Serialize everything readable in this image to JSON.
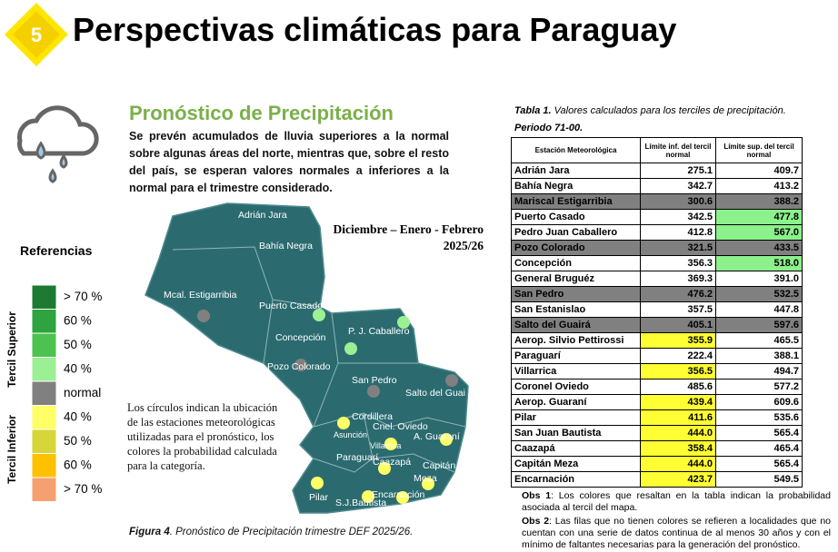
{
  "header": {
    "badge": "5",
    "title": "Perspectivas climáticas para Paraguay"
  },
  "precip": {
    "heading": "Pronóstico de Precipitación",
    "text": "Se prevén acumulados de lluvia superiores a la normal sobre algunas áreas del norte, mientras que, sobre el resto del país, se esperan valores normales a inferiores a la normal para el trimestre considerado."
  },
  "map": {
    "period_line1": "Diciembre – Enero - Febrero",
    "period_line2": "2025/26",
    "labels": [
      "Adrián Jara",
      "Bahía Negra",
      "Mcal. Estigarribia",
      "Puerto Casado",
      "P. J. Caballero",
      "Concepción",
      "Pozo Colorado",
      "San Pedro",
      "Salto del Guai",
      "Cordillera",
      "Asunción",
      "Cnel. Oviedo",
      "Villarrica",
      "A. Guaraní",
      "Paraguarí",
      "Caazapá",
      "Capitán",
      "Meza",
      "Pilar",
      "S.J.Bautista",
      "Encarnación"
    ]
  },
  "references": {
    "title": "Referencias",
    "superior": "Tercil Superior",
    "inferior": "Tercil Inferior",
    "items": [
      {
        "label": "> 70 %",
        "color": "#1e7a32"
      },
      {
        "label": "60 %",
        "color": "#2ea33f"
      },
      {
        "label": "50 %",
        "color": "#4cc24f"
      },
      {
        "label": "40 %",
        "color": "#9cf094"
      },
      {
        "label": "normal",
        "color": "#808080"
      },
      {
        "label": "40 %",
        "color": "#ffff66"
      },
      {
        "label": "50 %",
        "color": "#d6d63a"
      },
      {
        "label": "60 %",
        "color": "#ffc000"
      },
      {
        "label": "> 70 %",
        "color": "#f4a070"
      }
    ]
  },
  "note": {
    "text": "Los círculos indican la ubicación de las estaciones meteorológicas utilizadas para el pronóstico, los colores la probabilidad calculada para la categoría."
  },
  "figure_caption": {
    "label": "Figura 4",
    "text": ". Pronóstico de Precipitación trimestre DEF 2025/26."
  },
  "table": {
    "caption": {
      "label": "Tabla 1.",
      "text": " Valores calculados para los terciles de precipitación.",
      "period": "Periodo 71-00."
    },
    "header": [
      "Estación Meteorológica",
      "Límite inf. del tercil normal",
      "Límite sup. del tercil normal"
    ],
    "rows": [
      {
        "station": "Adrián Jara",
        "lower": "275.1",
        "upper": "409.7"
      },
      {
        "station": "Bahía Negra",
        "lower": "342.7",
        "upper": "413.2"
      },
      {
        "station": "Mariscal Estigarribia",
        "lower": "300.6",
        "upper": "388.2",
        "row_color": "#808080"
      },
      {
        "station": "Puerto Casado",
        "lower": "342.5",
        "upper": "477.8",
        "upper_color": "#8cf08c"
      },
      {
        "station": "Pedro Juan Caballero",
        "lower": "412.8",
        "upper": "567.0",
        "upper_color": "#8cf08c"
      },
      {
        "station": "Pozo Colorado",
        "lower": "321.5",
        "upper": "433.5",
        "row_color": "#808080"
      },
      {
        "station": "Concepción",
        "lower": "356.3",
        "upper": "518.0",
        "upper_color": "#8cf08c"
      },
      {
        "station": "General Bruguéz",
        "lower": "369.3",
        "upper": "391.0"
      },
      {
        "station": "San Pedro",
        "lower": "476.2",
        "upper": "532.5",
        "row_color": "#808080"
      },
      {
        "station": "San Estanislao",
        "lower": "357.5",
        "upper": "447.8"
      },
      {
        "station": "Salto del Guairá",
        "lower": "405.1",
        "upper": "597.6",
        "row_color": "#808080"
      },
      {
        "station": "Aerop. Silvio Pettirossi",
        "lower": "355.9",
        "upper": "465.5",
        "lower_color": "#ffff33"
      },
      {
        "station": "Paraguarí",
        "lower": "222.4",
        "upper": "388.1"
      },
      {
        "station": "Villarrica",
        "lower": "356.5",
        "upper": "494.7",
        "lower_color": "#ffff33"
      },
      {
        "station": "Coronel Oviedo",
        "lower": "485.6",
        "upper": "577.2"
      },
      {
        "station": "Aerop. Guaraní",
        "lower": "439.4",
        "upper": "609.6",
        "lower_color": "#ffff33"
      },
      {
        "station": "Pilar",
        "lower": "411.6",
        "upper": "535.6",
        "lower_color": "#ffff33"
      },
      {
        "station": "San Juan Bautista",
        "lower": "444.0",
        "upper": "565.4",
        "lower_color": "#ffff33"
      },
      {
        "station": "Caazapá",
        "lower": "358.4",
        "upper": "465.4",
        "lower_color": "#ffff33"
      },
      {
        "station": "Capitán Meza",
        "lower": "444.0",
        "upper": "565.4",
        "lower_color": "#ffff33"
      },
      {
        "station": "Encarnación",
        "lower": "423.7",
        "upper": "549.5",
        "lower_color": "#ffff33"
      }
    ]
  },
  "obs": [
    {
      "label": "Obs 1",
      "text": ": Los colores que resaltan en la tabla indican la probabilidad asociada al tercil del mapa."
    },
    {
      "label": "Obs 2",
      "text": ": Las filas que no tienen colores se refieren a localidades que no cuentan con una serie de datos continua de al menos 30 años y con el mínimo de faltantes necesarias para la generación del pronóstico."
    }
  ]
}
